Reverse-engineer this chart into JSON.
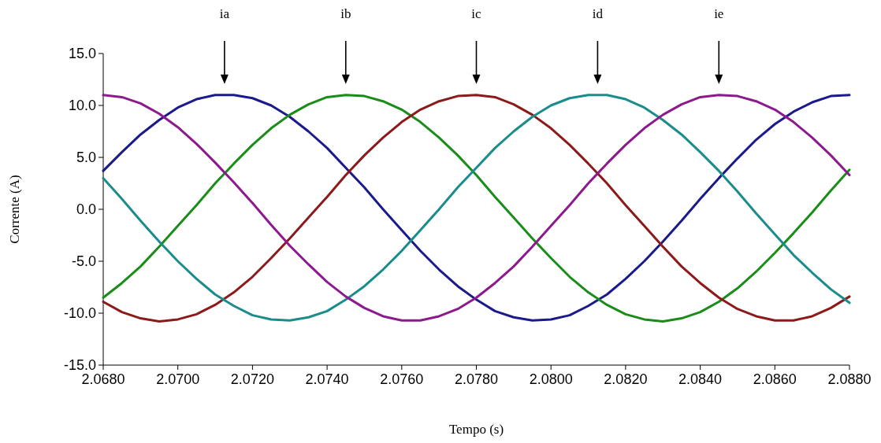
{
  "chart_data": {
    "type": "line",
    "xlabel": "Tempo (s)",
    "ylabel": "Corrente (A)",
    "x": [
      2.068,
      2.0685,
      2.069,
      2.0695,
      2.07,
      2.0705,
      2.071,
      2.0715,
      2.072,
      2.0725,
      2.073,
      2.0735,
      2.074,
      2.0745,
      2.075,
      2.0755,
      2.076,
      2.0765,
      2.077,
      2.0775,
      2.078,
      2.0785,
      2.079,
      2.0795,
      2.08,
      2.0805,
      2.081,
      2.0815,
      2.082,
      2.0825,
      2.083,
      2.0835,
      2.084,
      2.0845,
      2.085,
      2.0855,
      2.086,
      2.0865,
      2.087,
      2.0875,
      2.088
    ],
    "series": [
      {
        "color": "#1a1a8c",
        "values": [
          3.7,
          5.5,
          7.2,
          8.6,
          9.8,
          10.6,
          11.0,
          11.0,
          10.7,
          10.0,
          8.9,
          7.5,
          5.9,
          4.0,
          2.1,
          0.0,
          -2.0,
          -4.0,
          -5.8,
          -7.4,
          -8.7,
          -9.8,
          -10.4,
          -10.7,
          -10.6,
          -10.2,
          -9.3,
          -8.2,
          -6.7,
          -5.0,
          -3.1,
          -1.1,
          1.0,
          3.0,
          4.9,
          6.7,
          8.2,
          9.4,
          10.3,
          10.9,
          11.0
        ]
      },
      {
        "color": "#1a8c1a",
        "values": [
          -8.5,
          -7.1,
          -5.5,
          -3.6,
          -1.6,
          0.4,
          2.5,
          4.4,
          6.2,
          7.8,
          9.1,
          10.1,
          10.8,
          11.0,
          10.9,
          10.4,
          9.6,
          8.4,
          6.9,
          5.2,
          3.3,
          1.2,
          -0.8,
          -2.8,
          -4.7,
          -6.5,
          -8.0,
          -9.2,
          -10.1,
          -10.6,
          -10.8,
          -10.5,
          -9.9,
          -8.9,
          -7.6,
          -6.0,
          -4.2,
          -2.3,
          -0.3,
          1.8,
          3.8
        ]
      },
      {
        "color": "#8c1a1a",
        "values": [
          -8.9,
          -9.9,
          -10.5,
          -10.8,
          -10.6,
          -10.1,
          -9.2,
          -8.0,
          -6.5,
          -4.7,
          -2.8,
          -0.8,
          1.2,
          3.3,
          5.2,
          6.9,
          8.4,
          9.6,
          10.4,
          10.9,
          11.0,
          10.8,
          10.1,
          9.1,
          7.8,
          6.2,
          4.4,
          2.5,
          0.4,
          -1.6,
          -3.6,
          -5.5,
          -7.1,
          -8.5,
          -9.6,
          -10.3,
          -10.7,
          -10.7,
          -10.3,
          -9.5,
          -8.4
        ]
      },
      {
        "color": "#1a8c8c",
        "values": [
          3.0,
          1.0,
          -1.1,
          -3.1,
          -5.0,
          -6.7,
          -8.2,
          -9.3,
          -10.2,
          -10.6,
          -10.7,
          -10.4,
          -9.8,
          -8.7,
          -7.4,
          -5.8,
          -4.0,
          -2.0,
          0.0,
          2.1,
          4.0,
          5.9,
          7.5,
          8.9,
          10.0,
          10.7,
          11.0,
          11.0,
          10.6,
          9.8,
          8.6,
          7.2,
          5.5,
          3.7,
          1.7,
          -0.4,
          -2.4,
          -4.4,
          -6.1,
          -7.7,
          -9.0
        ]
      },
      {
        "color": "#8c1a8c",
        "values": [
          11.0,
          10.8,
          10.2,
          9.2,
          7.9,
          6.3,
          4.5,
          2.6,
          0.6,
          -1.5,
          -3.5,
          -5.3,
          -7.0,
          -8.4,
          -9.5,
          -10.3,
          -10.7,
          -10.7,
          -10.3,
          -9.6,
          -8.5,
          -7.1,
          -5.5,
          -3.6,
          -1.6,
          0.4,
          2.5,
          4.4,
          6.2,
          7.8,
          9.1,
          10.1,
          10.8,
          11.0,
          10.9,
          10.4,
          9.6,
          8.4,
          6.9,
          5.2,
          3.3
        ]
      }
    ],
    "xlim": [
      2.068,
      2.088
    ],
    "xticks": [
      {
        "value": 2.068,
        "label": "2.0680"
      },
      {
        "value": 2.07,
        "label": "2.0700"
      },
      {
        "value": 2.072,
        "label": "2.0720"
      },
      {
        "value": 2.074,
        "label": "2.0740"
      },
      {
        "value": 2.076,
        "label": "2.0760"
      },
      {
        "value": 2.078,
        "label": "2.0780"
      },
      {
        "value": 2.08,
        "label": "2.0800"
      },
      {
        "value": 2.082,
        "label": "2.0820"
      },
      {
        "value": 2.084,
        "label": "2.0840"
      },
      {
        "value": 2.086,
        "label": "2.0860"
      },
      {
        "value": 2.088,
        "label": "2.0880"
      }
    ],
    "ylim": [
      -15,
      15
    ],
    "yticks": [
      {
        "value": -15,
        "label": "-15.0"
      },
      {
        "value": -10,
        "label": "-10.0"
      },
      {
        "value": -5,
        "label": "-5.0"
      },
      {
        "value": 0,
        "label": "0.0"
      },
      {
        "value": 5,
        "label": "5.0"
      },
      {
        "value": 10,
        "label": "10.0"
      },
      {
        "value": 15,
        "label": "15.0"
      }
    ],
    "annotations": [
      "ia",
      "ib",
      "ic",
      "id",
      "ie"
    ],
    "grid": false,
    "marker": "none",
    "line_style": "solid"
  }
}
